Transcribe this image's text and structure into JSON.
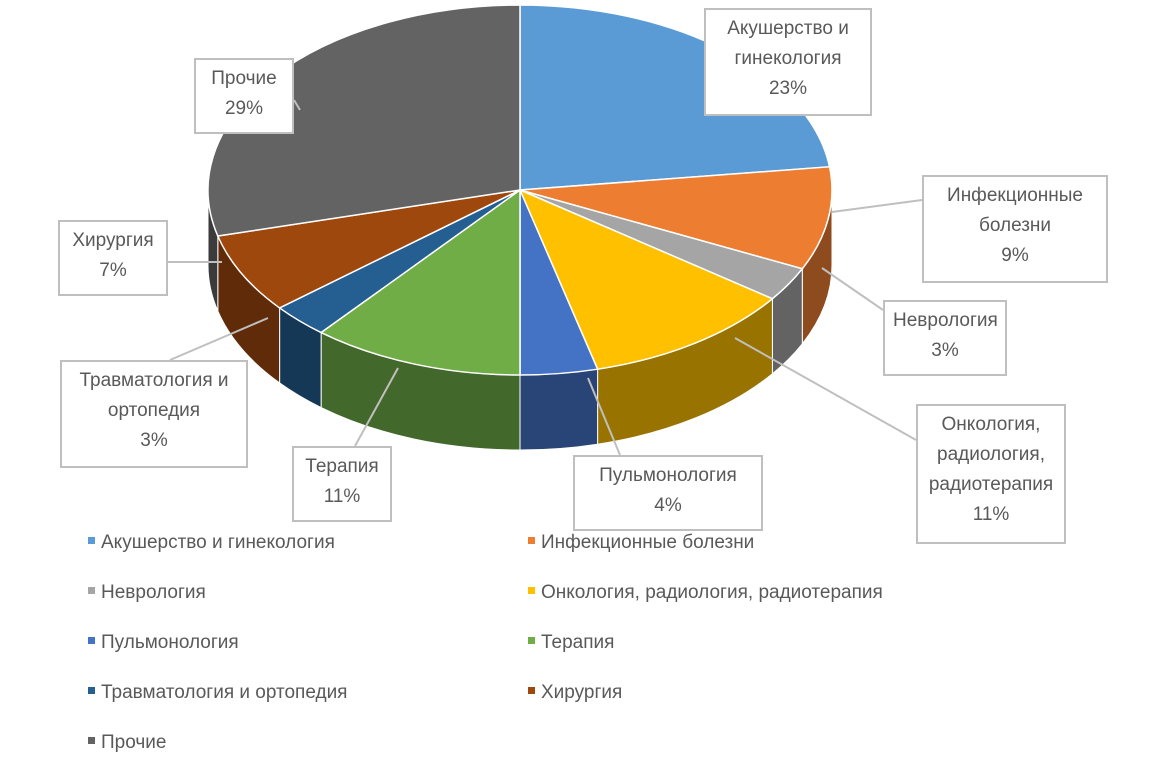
{
  "chart_data": {
    "type": "pie",
    "style": "3d",
    "title": "",
    "categories": [
      "Акушерство и гинекология",
      "Инфекционные болезни",
      "Неврология",
      "Онкология, радиология, радиотерапия",
      "Пульмонология",
      "Терапия",
      "Травматология и ортопедия",
      "Хирургия",
      "Прочие"
    ],
    "values": [
      23,
      9,
      3,
      11,
      4,
      11,
      3,
      7,
      29
    ],
    "unit": "%",
    "colors": [
      "#5b9bd5",
      "#ed7d31",
      "#a5a5a5",
      "#ffc000",
      "#4472c4",
      "#70ad47",
      "#255e91",
      "#9e480e",
      "#636363"
    ],
    "legend_position": "bottom"
  },
  "labels": [
    {
      "lines": [
        "Акушерство и",
        "гинекология",
        "23%"
      ]
    },
    {
      "lines": [
        "Инфекционные",
        "болезни",
        "9%"
      ]
    },
    {
      "lines": [
        "Неврология",
        "3%"
      ]
    },
    {
      "lines": [
        "Онкология,",
        "радиология,",
        "радиотерапия",
        "11%"
      ]
    },
    {
      "lines": [
        "Пульмонология",
        "4%"
      ]
    },
    {
      "lines": [
        "Терапия",
        "11%"
      ]
    },
    {
      "lines": [
        "Травматология и",
        "ортопедия",
        "3%"
      ]
    },
    {
      "lines": [
        "Хирургия",
        "7%"
      ]
    },
    {
      "lines": [
        "Прочие",
        "29%"
      ]
    }
  ],
  "legend": [
    {
      "label": "Акушерство и гинекология",
      "color": "#5b9bd5"
    },
    {
      "label": "Инфекционные болезни",
      "color": "#ed7d31"
    },
    {
      "label": "Неврология",
      "color": "#a5a5a5"
    },
    {
      "label": "Онкология, радиология, радиотерапия",
      "color": "#ffc000"
    },
    {
      "label": "Пульмонология",
      "color": "#4472c4"
    },
    {
      "label": "Терапия",
      "color": "#70ad47"
    },
    {
      "label": "Травматология и ортопедия",
      "color": "#255e91"
    },
    {
      "label": "Хирургия",
      "color": "#9e480e"
    },
    {
      "label": "Прочие",
      "color": "#636363"
    }
  ]
}
